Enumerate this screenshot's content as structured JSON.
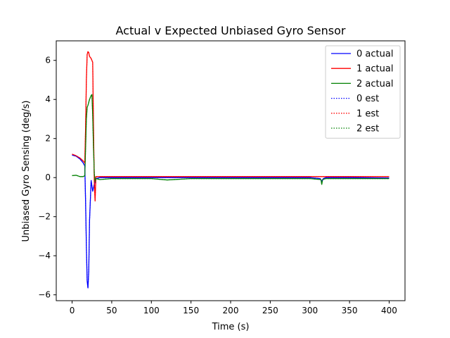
{
  "chart_data": {
    "type": "line",
    "title": "Actual v Expected Unbiased Gyro Sensor",
    "xlabel": "Time (s)",
    "ylabel": "Unbiased Gyro Sensing (deg/s)",
    "xlim": [
      -20,
      420
    ],
    "ylim": [
      -6.3,
      7.0
    ],
    "xticks": [
      0,
      50,
      100,
      150,
      200,
      250,
      300,
      350,
      400
    ],
    "yticks": [
      -6,
      -4,
      -2,
      0,
      2,
      4,
      6
    ],
    "xtick_labels": [
      "0",
      "50",
      "100",
      "150",
      "200",
      "250",
      "300",
      "350",
      "400"
    ],
    "ytick_labels": [
      "−6",
      "−4",
      "−2",
      "0",
      "2",
      "4",
      "6"
    ],
    "grid": false,
    "legend_position": "top-right",
    "series": [
      {
        "name": "0 actual",
        "color": "#0000ff",
        "style": "solid",
        "x": [
          0,
          5,
          10,
          14,
          16,
          17,
          18,
          19,
          20,
          21,
          22,
          24,
          26,
          28,
          30,
          35,
          50,
          100,
          150,
          200,
          250,
          300,
          313,
          315,
          317,
          320,
          350,
          400
        ],
        "y": [
          1.15,
          1.1,
          0.95,
          0.75,
          0.6,
          -1.2,
          -3.5,
          -5.3,
          -5.65,
          -4.8,
          -2.2,
          -0.15,
          -0.7,
          -0.35,
          -0.05,
          0.0,
          0.0,
          0.0,
          0.0,
          0.0,
          0.0,
          0.0,
          -0.05,
          -0.2,
          -0.05,
          0.0,
          0.0,
          -0.02
        ]
      },
      {
        "name": "1 actual",
        "color": "#ff0000",
        "style": "solid",
        "x": [
          0,
          5,
          10,
          14,
          16,
          17,
          18,
          19,
          20,
          21,
          22,
          24,
          26,
          27,
          28,
          29,
          30,
          35,
          50,
          100,
          150,
          200,
          250,
          300,
          350,
          400
        ],
        "y": [
          1.2,
          1.12,
          1.0,
          0.85,
          0.75,
          2.5,
          5.0,
          6.3,
          6.45,
          6.4,
          6.2,
          6.1,
          5.9,
          2.5,
          -0.2,
          -1.2,
          0.05,
          0.05,
          0.05,
          0.05,
          0.05,
          0.05,
          0.05,
          0.05,
          0.05,
          0.05
        ]
      },
      {
        "name": "2 actual",
        "color": "#008000",
        "style": "solid",
        "x": [
          0,
          5,
          10,
          14,
          16,
          17,
          18,
          19,
          20,
          21,
          22,
          24,
          25,
          26,
          27,
          28,
          29,
          30,
          35,
          50,
          100,
          120,
          150,
          200,
          250,
          300,
          314,
          315,
          316,
          320,
          350,
          400
        ],
        "y": [
          0.1,
          0.12,
          0.05,
          0.05,
          0.1,
          1.5,
          3.0,
          3.6,
          3.7,
          3.85,
          4.0,
          4.2,
          4.25,
          3.2,
          1.5,
          0.2,
          -0.2,
          -0.05,
          -0.1,
          -0.05,
          -0.05,
          -0.12,
          -0.05,
          -0.05,
          -0.05,
          -0.05,
          -0.1,
          -0.35,
          -0.1,
          -0.05,
          -0.05,
          -0.05
        ]
      },
      {
        "name": "0 est",
        "color": "#0000ff",
        "style": "dotted",
        "x": [
          0,
          5,
          10,
          14,
          16,
          17,
          18,
          19,
          20,
          21,
          22,
          24,
          26,
          28,
          30,
          35,
          50,
          100,
          150,
          200,
          250,
          300,
          313,
          315,
          317,
          320,
          350,
          400
        ],
        "y": [
          1.15,
          1.1,
          0.95,
          0.75,
          0.6,
          -1.2,
          -3.5,
          -5.3,
          -5.65,
          -4.8,
          -2.2,
          -0.15,
          -0.7,
          -0.35,
          -0.05,
          0.0,
          0.0,
          0.0,
          0.0,
          0.0,
          0.0,
          0.0,
          -0.05,
          -0.2,
          -0.05,
          0.0,
          0.0,
          -0.02
        ]
      },
      {
        "name": "1 est",
        "color": "#ff0000",
        "style": "dotted",
        "x": [
          0,
          5,
          10,
          14,
          16,
          17,
          18,
          19,
          20,
          21,
          22,
          24,
          26,
          27,
          28,
          29,
          30,
          35,
          50,
          100,
          150,
          200,
          250,
          300,
          350,
          400
        ],
        "y": [
          1.2,
          1.12,
          1.0,
          0.85,
          0.75,
          2.5,
          5.0,
          6.3,
          6.45,
          6.4,
          6.2,
          6.1,
          5.9,
          2.5,
          -0.2,
          -1.2,
          0.05,
          0.05,
          0.05,
          0.05,
          0.05,
          0.05,
          0.05,
          0.05,
          0.05,
          0.05
        ]
      },
      {
        "name": "2 est",
        "color": "#008000",
        "style": "dotted",
        "x": [
          0,
          5,
          10,
          14,
          16,
          17,
          18,
          19,
          20,
          21,
          22,
          24,
          25,
          26,
          27,
          28,
          29,
          30,
          35,
          50,
          100,
          120,
          150,
          200,
          250,
          300,
          314,
          315,
          316,
          320,
          350,
          400
        ],
        "y": [
          0.1,
          0.12,
          0.05,
          0.05,
          0.1,
          1.5,
          3.0,
          3.6,
          3.7,
          3.85,
          4.0,
          4.2,
          4.25,
          3.2,
          1.5,
          0.2,
          -0.2,
          -0.05,
          -0.1,
          -0.05,
          -0.05,
          -0.12,
          -0.05,
          -0.05,
          -0.05,
          -0.05,
          -0.1,
          -0.35,
          -0.1,
          -0.05,
          -0.05,
          -0.05
        ]
      }
    ]
  }
}
